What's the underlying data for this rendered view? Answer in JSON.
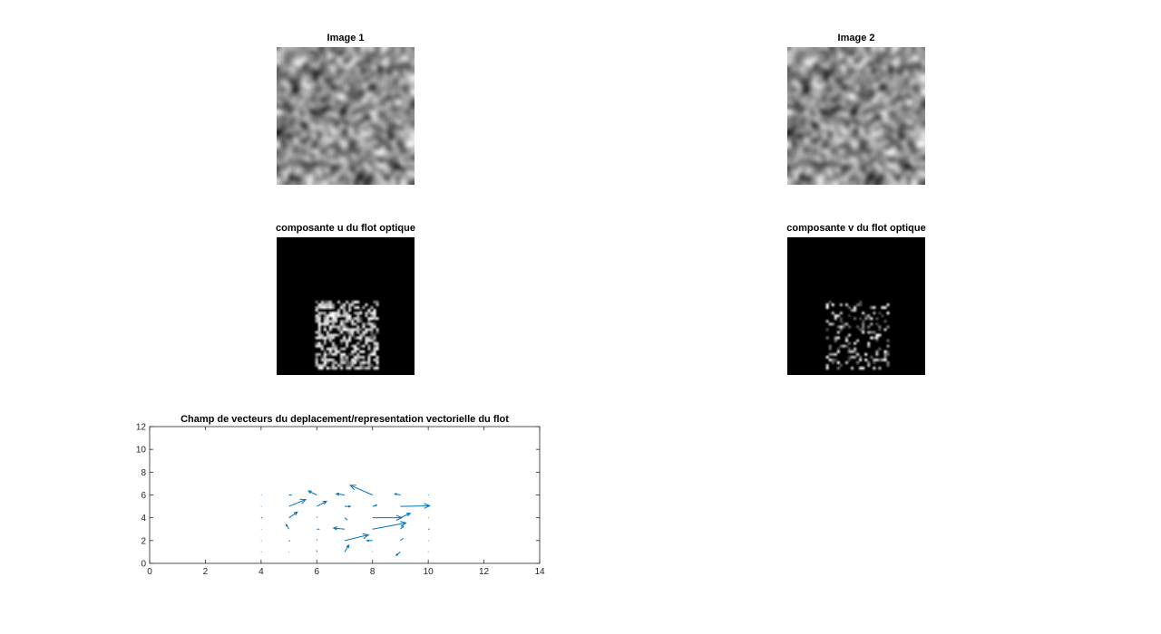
{
  "panels": {
    "image1": {
      "title": "Image 1"
    },
    "image2": {
      "title": "Image 2"
    },
    "u_component": {
      "title": "composante u du flot optique"
    },
    "v_component": {
      "title": "composante v du flot optique"
    }
  },
  "chart_data": {
    "type": "quiver",
    "title": "Champ de vecteurs du deplacement/representation vectorielle du flot",
    "xlabel": "",
    "ylabel": "",
    "xlim": [
      0,
      14
    ],
    "ylim": [
      0,
      12
    ],
    "xticks": [
      0,
      2,
      4,
      6,
      8,
      10,
      12,
      14
    ],
    "yticks": [
      0,
      2,
      4,
      6,
      8,
      10,
      12
    ],
    "grid": false,
    "color": "#0072BD",
    "vectors": [
      {
        "x": 4,
        "y": 1,
        "u": 0,
        "v": 0
      },
      {
        "x": 4,
        "y": 2,
        "u": 0,
        "v": 0
      },
      {
        "x": 4,
        "y": 3,
        "u": 0,
        "v": 0
      },
      {
        "x": 4,
        "y": 4,
        "u": 0.05,
        "v": 0
      },
      {
        "x": 4,
        "y": 5,
        "u": 0,
        "v": 0
      },
      {
        "x": 4,
        "y": 6,
        "u": 0,
        "v": 0
      },
      {
        "x": 5,
        "y": 1,
        "u": 0,
        "v": -0.05
      },
      {
        "x": 5,
        "y": 2,
        "u": 0.05,
        "v": -0.05
      },
      {
        "x": 5,
        "y": 3,
        "u": -0.1,
        "v": 0.4
      },
      {
        "x": 5,
        "y": 4,
        "u": 0.3,
        "v": 0.5
      },
      {
        "x": 5,
        "y": 5,
        "u": 0.6,
        "v": 0.6
      },
      {
        "x": 5,
        "y": 6,
        "u": 0.1,
        "v": 0
      },
      {
        "x": 6,
        "y": 1,
        "u": 0,
        "v": 0.15
      },
      {
        "x": 6,
        "y": 2,
        "u": 0,
        "v": 0.1
      },
      {
        "x": 6,
        "y": 3,
        "u": 0.1,
        "v": 0
      },
      {
        "x": 6,
        "y": 4,
        "u": 0,
        "v": 0.1
      },
      {
        "x": 6,
        "y": 5,
        "u": 0.35,
        "v": 0.45
      },
      {
        "x": 6,
        "y": 6,
        "u": -0.3,
        "v": 0.35
      },
      {
        "x": 7,
        "y": 1,
        "u": 0.15,
        "v": 0.6
      },
      {
        "x": 7,
        "y": 2,
        "u": 0.85,
        "v": 0.5
      },
      {
        "x": 7,
        "y": 3,
        "u": -0.4,
        "v": 0.1
      },
      {
        "x": 7,
        "y": 4,
        "u": 0.1,
        "v": -0.2
      },
      {
        "x": 7,
        "y": 5,
        "u": 0.2,
        "v": 0
      },
      {
        "x": 7,
        "y": 6,
        "u": -0.3,
        "v": 0.1
      },
      {
        "x": 8,
        "y": 1,
        "u": 0,
        "v": 0.05
      },
      {
        "x": 8,
        "y": 2,
        "u": -0.2,
        "v": 0
      },
      {
        "x": 8,
        "y": 3,
        "u": 1.2,
        "v": 0.55
      },
      {
        "x": 8,
        "y": 4,
        "u": 1.05,
        "v": 0
      },
      {
        "x": 8,
        "y": 5,
        "u": 0.15,
        "v": 0.1
      },
      {
        "x": 8,
        "y": 6,
        "u": -0.8,
        "v": 0.85
      },
      {
        "x": 9,
        "y": 1,
        "u": -0.15,
        "v": -0.3
      },
      {
        "x": 9,
        "y": 2,
        "u": 0.1,
        "v": 0.2
      },
      {
        "x": 9,
        "y": 3,
        "u": 0.1,
        "v": 0.25
      },
      {
        "x": 9,
        "y": 4,
        "u": 0.35,
        "v": 0.4
      },
      {
        "x": 9,
        "y": 5,
        "u": 1.05,
        "v": 0.05
      },
      {
        "x": 9,
        "y": 6,
        "u": -0.2,
        "v": 0.1
      },
      {
        "x": 10,
        "y": 1,
        "u": 0,
        "v": 0.05
      },
      {
        "x": 10,
        "y": 2,
        "u": 0,
        "v": 0
      },
      {
        "x": 10,
        "y": 3,
        "u": 0.05,
        "v": 0
      },
      {
        "x": 10,
        "y": 4,
        "u": 0,
        "v": 0
      },
      {
        "x": 10,
        "y": 5,
        "u": 0,
        "v": 0
      },
      {
        "x": 10,
        "y": 6,
        "u": 0,
        "v": 0
      }
    ]
  }
}
